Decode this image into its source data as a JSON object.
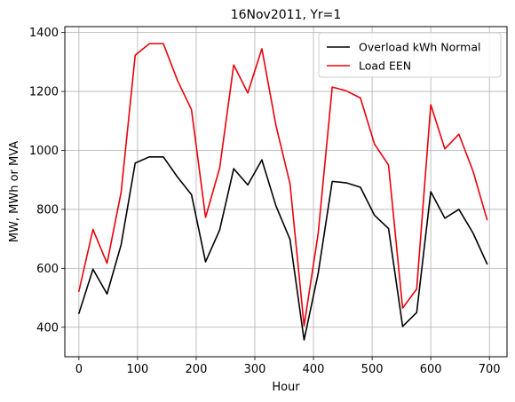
{
  "chart_data": {
    "type": "line",
    "title": "16Nov2011, Yr=1",
    "xlabel": "Hour",
    "ylabel": "MW, MWh or MVA",
    "xlim": [
      -24,
      730
    ],
    "ylim": [
      300,
      1420
    ],
    "xticks": [
      0,
      100,
      200,
      300,
      400,
      500,
      600,
      700
    ],
    "yticks": [
      400,
      600,
      800,
      1000,
      1200,
      1400
    ],
    "grid": true,
    "legend_position": "top-right",
    "x": [
      0,
      24,
      48,
      72,
      96,
      120,
      144,
      168,
      192,
      216,
      240,
      264,
      288,
      312,
      336,
      360,
      384,
      408,
      432,
      456,
      480,
      504,
      528,
      552,
      576,
      600,
      624,
      648,
      672,
      696
    ],
    "series": [
      {
        "name": "Overload kWh Normal",
        "color": "#000000",
        "values": [
          447,
          597,
          513,
          680,
          957,
          978,
          978,
          910,
          850,
          622,
          730,
          938,
          883,
          968,
          812,
          698,
          357,
          583,
          895,
          890,
          875,
          780,
          735,
          403,
          450,
          860,
          770,
          800,
          720,
          615
        ]
      },
      {
        "name": "Load EEN",
        "color": "#e8000b",
        "values": [
          522,
          732,
          617,
          858,
          1323,
          1362,
          1362,
          1238,
          1138,
          773,
          940,
          1290,
          1195,
          1345,
          1085,
          887,
          405,
          718,
          1215,
          1202,
          1178,
          1022,
          950,
          465,
          530,
          1155,
          1005,
          1055,
          930,
          765
        ]
      }
    ]
  }
}
